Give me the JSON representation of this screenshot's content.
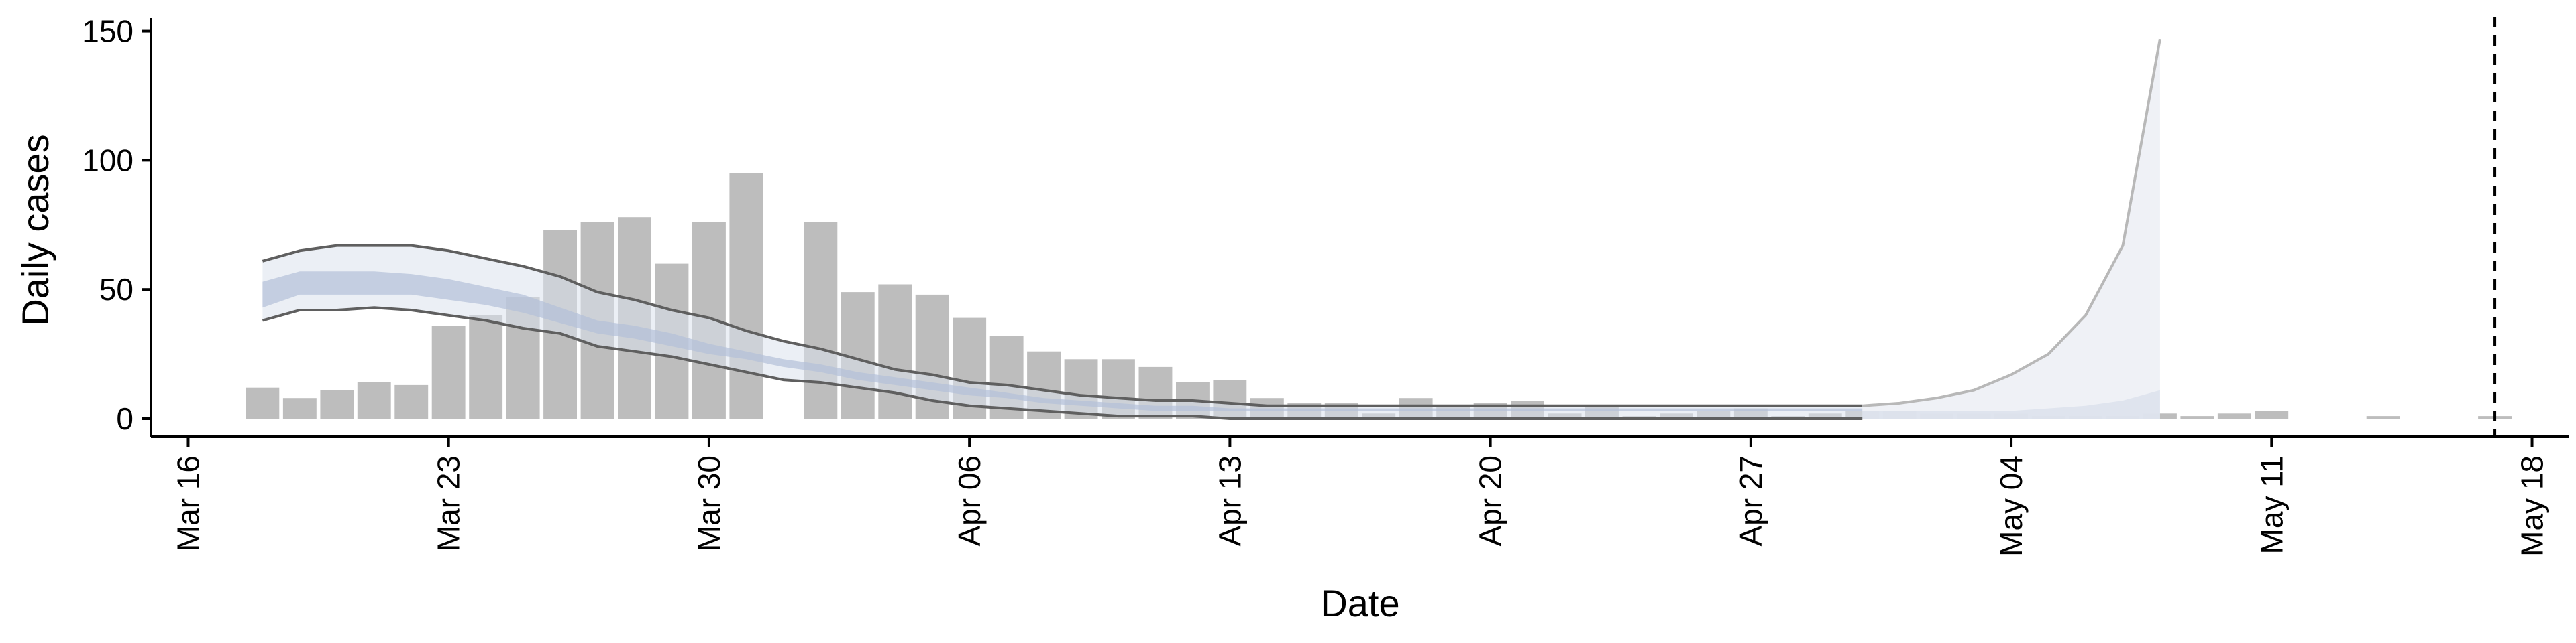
{
  "chart_data": {
    "type": "bar",
    "xlabel": "Date",
    "ylabel": "Daily cases",
    "x_ticks": [
      "Mar 16",
      "Mar 23",
      "Mar 30",
      "Apr 06",
      "Apr 13",
      "Apr 20",
      "Apr 27",
      "May 04",
      "May 11",
      "May 18"
    ],
    "y_ticks": [
      0,
      50,
      100,
      150
    ],
    "xlim": [
      "2020-03-15",
      "2020-05-19"
    ],
    "ylim": [
      -7,
      153
    ],
    "grid": false,
    "colors": {
      "bars": "#bdbdbd",
      "band_outer": "#dbe1ec",
      "band_inner": "#b3c0d9",
      "outer_lines": "#5f5f5f",
      "forecast_band": "#eceff5",
      "forecast_lines": "#b8b8b8",
      "vline": "#000000"
    },
    "vline_date": "2020-05-17",
    "observed": {
      "dates": [
        "2020-03-18",
        "2020-03-19",
        "2020-03-20",
        "2020-03-21",
        "2020-03-22",
        "2020-03-23",
        "2020-03-24",
        "2020-03-25",
        "2020-03-26",
        "2020-03-27",
        "2020-03-28",
        "2020-03-29",
        "2020-03-30",
        "2020-03-31",
        "2020-04-01",
        "2020-04-02",
        "2020-04-03",
        "2020-04-04",
        "2020-04-05",
        "2020-04-06",
        "2020-04-07",
        "2020-04-08",
        "2020-04-09",
        "2020-04-10",
        "2020-04-11",
        "2020-04-12",
        "2020-04-13",
        "2020-04-14",
        "2020-04-15",
        "2020-04-16",
        "2020-04-17",
        "2020-04-18",
        "2020-04-19",
        "2020-04-20",
        "2020-04-21",
        "2020-04-22",
        "2020-04-23",
        "2020-04-24",
        "2020-04-25",
        "2020-04-26",
        "2020-04-27",
        "2020-04-28",
        "2020-04-29",
        "2020-04-30",
        "2020-05-01",
        "2020-05-02",
        "2020-05-03",
        "2020-05-04",
        "2020-05-05",
        "2020-05-06",
        "2020-05-07",
        "2020-05-08",
        "2020-05-09",
        "2020-05-10",
        "2020-05-11",
        "2020-05-12",
        "2020-05-13",
        "2020-05-14",
        "2020-05-15",
        "2020-05-16",
        "2020-05-17"
      ],
      "values": [
        12,
        8,
        11,
        14,
        13,
        36,
        40,
        47,
        73,
        76,
        78,
        60,
        76,
        95,
        0,
        76,
        49,
        52,
        48,
        39,
        32,
        26,
        23,
        23,
        20,
        14,
        15,
        8,
        6,
        6,
        2,
        8,
        5,
        6,
        7,
        2,
        5,
        1,
        2,
        3,
        4,
        1,
        2,
        3,
        3,
        2,
        2,
        2,
        1,
        1,
        1,
        2,
        1,
        2,
        3,
        0,
        0,
        1,
        0,
        0,
        1
      ]
    },
    "nowcast": {
      "dates": [
        "2020-03-18",
        "2020-03-19",
        "2020-03-20",
        "2020-03-21",
        "2020-03-22",
        "2020-03-23",
        "2020-03-24",
        "2020-03-25",
        "2020-03-26",
        "2020-03-27",
        "2020-03-28",
        "2020-03-29",
        "2020-03-30",
        "2020-03-31",
        "2020-04-01",
        "2020-04-02",
        "2020-04-03",
        "2020-04-04",
        "2020-04-05",
        "2020-04-06",
        "2020-04-07",
        "2020-04-08",
        "2020-04-09",
        "2020-04-10",
        "2020-04-11",
        "2020-04-12",
        "2020-04-13",
        "2020-04-14",
        "2020-04-15",
        "2020-04-16",
        "2020-04-17",
        "2020-04-18",
        "2020-04-19",
        "2020-04-20",
        "2020-04-21",
        "2020-04-22",
        "2020-04-23",
        "2020-04-24",
        "2020-04-25",
        "2020-04-26",
        "2020-04-27",
        "2020-04-28",
        "2020-04-29",
        "2020-04-30"
      ],
      "upper90": [
        61,
        65,
        67,
        67,
        67,
        65,
        62,
        59,
        55,
        49,
        46,
        42,
        39,
        34,
        30,
        27,
        23,
        19,
        17,
        14,
        13,
        11,
        9,
        8,
        7,
        7,
        6,
        5,
        5,
        5,
        5,
        5,
        5,
        5,
        5,
        5,
        5,
        5,
        5,
        5,
        5,
        5,
        5,
        5
      ],
      "upper50": [
        53,
        57,
        57,
        57,
        56,
        54,
        51,
        48,
        43,
        38,
        36,
        33,
        29,
        26,
        23,
        21,
        18,
        16,
        14,
        12,
        10,
        8,
        7,
        6,
        5,
        5,
        4,
        4,
        4,
        4,
        4,
        4,
        4,
        4,
        4,
        4,
        4,
        4,
        4,
        4,
        4,
        4,
        4,
        4
      ],
      "lower50": [
        43,
        48,
        48,
        48,
        48,
        46,
        44,
        41,
        37,
        33,
        31,
        28,
        25,
        23,
        20,
        18,
        15,
        13,
        11,
        9,
        8,
        6,
        5,
        4,
        3,
        3,
        3,
        3,
        3,
        3,
        3,
        3,
        3,
        3,
        3,
        3,
        3,
        3,
        3,
        3,
        3,
        3,
        3,
        3
      ],
      "lower90": [
        38,
        42,
        42,
        43,
        42,
        40,
        38,
        35,
        33,
        28,
        26,
        24,
        21,
        18,
        15,
        14,
        12,
        10,
        7,
        5,
        4,
        3,
        2,
        1,
        1,
        1,
        0,
        0,
        0,
        0,
        0,
        0,
        0,
        0,
        0,
        0,
        0,
        0,
        0,
        0,
        0,
        0,
        0,
        0
      ]
    },
    "forecast": {
      "dates": [
        "2020-04-30",
        "2020-05-01",
        "2020-05-02",
        "2020-05-03",
        "2020-05-04",
        "2020-05-05",
        "2020-05-06",
        "2020-05-07",
        "2020-05-08"
      ],
      "upper": [
        5,
        6,
        8,
        11,
        17,
        25,
        40,
        67,
        147
      ],
      "inner": [
        3,
        3,
        3,
        3,
        3,
        4,
        5,
        7,
        11
      ],
      "lower": [
        0,
        0,
        0,
        0,
        0,
        0,
        0,
        0,
        0
      ]
    }
  }
}
